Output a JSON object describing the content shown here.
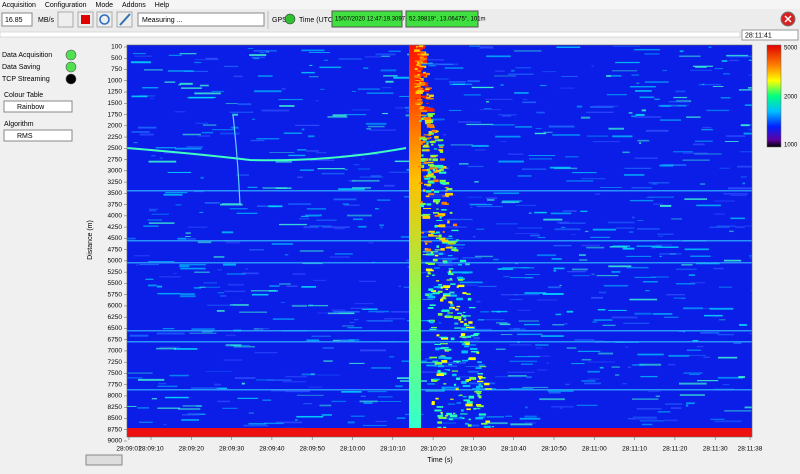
{
  "menu": [
    "Acquisition",
    "Configuration",
    "Mode",
    "Addons",
    "Help"
  ],
  "toolbar": {
    "rate": "16.85",
    "rate_unit": "MB/s",
    "status": "Measuring ...",
    "gps_label": "GPS",
    "time_label": "Time (UTC)",
    "time": "15/07/2020 12:47:19.3097",
    "position": "52.39819°, 13.06475°, 101m"
  },
  "clock": "28:11:41",
  "indicators": [
    "Data Acquisition",
    "Data Saving",
    "TCP Streaming"
  ],
  "colour_table": {
    "label": "Colour Table",
    "value": "Rainbow"
  },
  "algorithm": {
    "label": "Algorithm",
    "value": "RMS"
  },
  "plot": {
    "y_label": "Distance (m)",
    "x_label": "Time (s)",
    "y_ticks": [
      "100",
      "500",
      "750",
      "1000",
      "1250",
      "1500",
      "1750",
      "2000",
      "2250",
      "2500",
      "2750",
      "3000",
      "3250",
      "3500",
      "3750",
      "4000",
      "4250",
      "4500",
      "4750",
      "5000",
      "5250",
      "5500",
      "5750",
      "6000",
      "6250",
      "6500",
      "6750",
      "7000",
      "7250",
      "7500",
      "7750",
      "8000",
      "8250",
      "8500",
      "8750",
      "9000"
    ],
    "x_ticks": [
      "28:09:01",
      "28:09:10",
      "28:09:20",
      "28:09:30",
      "28:09:40",
      "28:09:50",
      "28:10:00",
      "28:10:10",
      "28:10:20",
      "28:10:30",
      "28:10:40",
      "28:10:50",
      "28:11:00",
      "28:11:10",
      "28:11:20",
      "28:11:30",
      "28:11:38"
    ],
    "colorbar_ticks": [
      "5000",
      "2000",
      "1000"
    ]
  }
}
